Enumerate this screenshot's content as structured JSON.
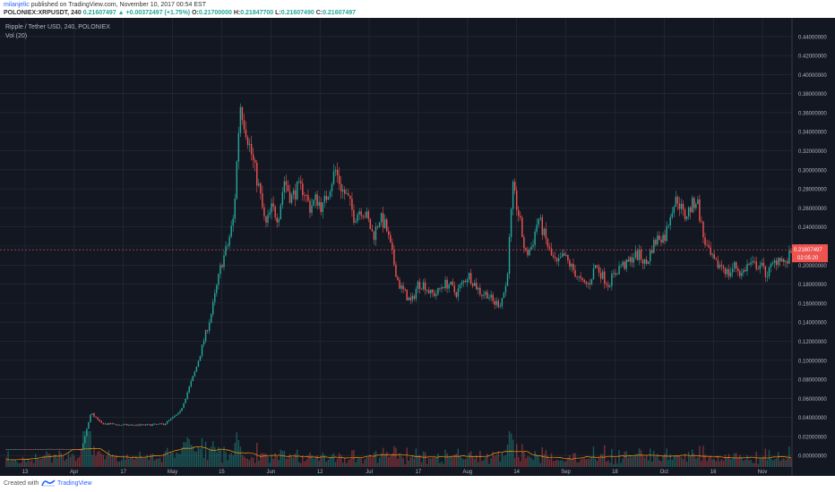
{
  "header": {
    "author": "milanjelic",
    "published": "published on TradingView.com, November 10, 2017 00:54 EST",
    "symbol": "POLONIEX:XRPUSDT, 240",
    "last": "0.21607497",
    "change": "▲ +0.00372497 (+1.75%)",
    "o_label": "O:",
    "o": "0.21700000",
    "h_label": "H:",
    "h": "0.21847700",
    "l_label": "L:",
    "l": "0.21607490",
    "c_label": "C:",
    "c": "0.21607497"
  },
  "legend": {
    "title": "Ripple / Tether USD, 240, POLONIEX",
    "volume": "Vol (20)"
  },
  "price_tag": {
    "value": "0.21607497",
    "countdown": "02:05:20"
  },
  "footer": {
    "created": "Created with",
    "brand": "TradingView"
  },
  "colors": {
    "background": "#131722",
    "up": "#26a69a",
    "down": "#ef5350",
    "grid": "#2a2e39",
    "vol_ma": "#ff9800"
  },
  "chart_data": {
    "type": "line",
    "title": "Ripple / Tether USD, 240, POLONIEX",
    "x_ticks": [
      "13",
      "Apr",
      "17",
      "May",
      "15",
      "Jun",
      "12",
      "Jul",
      "17",
      "Aug",
      "14",
      "Sep",
      "18",
      "Oct",
      "16",
      "Nov"
    ],
    "y_ticks": [
      "0.44000000",
      "0.42000000",
      "0.40000000",
      "0.38000000",
      "0.36000000",
      "0.34000000",
      "0.32000000",
      "0.30000000",
      "0.28000000",
      "0.26000000",
      "0.24000000",
      "0.22000000",
      "0.20000000",
      "0.18000000",
      "0.16000000",
      "0.14000000",
      "0.12000000",
      "0.10000000",
      "0.08000000",
      "0.06000000",
      "0.04000000",
      "0.02000000",
      "0.00000000"
    ],
    "ylim": [
      -0.012,
      0.452
    ],
    "x_range": [
      0,
      248
    ],
    "series": [
      {
        "x": [
          0,
          10,
          20,
          24,
          27,
          30,
          32,
          34,
          36,
          38,
          40,
          45,
          50,
          55,
          60,
          65,
          68,
          70,
          72,
          74,
          76,
          78,
          80,
          82,
          84,
          86,
          88,
          90,
          92,
          94,
          96,
          98,
          100,
          102,
          104,
          106,
          108,
          110,
          112,
          114,
          116,
          118,
          120,
          122,
          124,
          126,
          128,
          130,
          132,
          134,
          136,
          138,
          140,
          142,
          144,
          146,
          148,
          150,
          152,
          154,
          156,
          158,
          160,
          162,
          164,
          166,
          168,
          170,
          172,
          174,
          176,
          178,
          180,
          182,
          184,
          186,
          188,
          190,
          192,
          194,
          196,
          198,
          200,
          202,
          204,
          206,
          208,
          210,
          212,
          214,
          216,
          218,
          220,
          222,
          224,
          226,
          228,
          230,
          232,
          234,
          236,
          238,
          240,
          242,
          244,
          246,
          248
        ],
        "values": [
          0.0065,
          0.0066,
          0.0068,
          0.006,
          0.045,
          0.034,
          0.033,
          0.033,
          0.032,
          0.032,
          0.032,
          0.032,
          0.033,
          0.045,
          0.09,
          0.15,
          0.2,
          0.22,
          0.25,
          0.37,
          0.34,
          0.31,
          0.28,
          0.24,
          0.26,
          0.25,
          0.29,
          0.27,
          0.28,
          0.28,
          0.26,
          0.27,
          0.26,
          0.28,
          0.3,
          0.28,
          0.27,
          0.25,
          0.26,
          0.25,
          0.23,
          0.25,
          0.24,
          0.21,
          0.18,
          0.17,
          0.16,
          0.18,
          0.18,
          0.17,
          0.17,
          0.18,
          0.18,
          0.17,
          0.18,
          0.19,
          0.18,
          0.17,
          0.17,
          0.16,
          0.16,
          0.18,
          0.28,
          0.25,
          0.21,
          0.22,
          0.25,
          0.23,
          0.21,
          0.2,
          0.21,
          0.2,
          0.19,
          0.18,
          0.18,
          0.2,
          0.19,
          0.18,
          0.19,
          0.2,
          0.2,
          0.21,
          0.21,
          0.2,
          0.22,
          0.23,
          0.23,
          0.26,
          0.27,
          0.25,
          0.26,
          0.27,
          0.23,
          0.21,
          0.2,
          0.2,
          0.19,
          0.2,
          0.19,
          0.2,
          0.2,
          0.2,
          0.19,
          0.2,
          0.21,
          0.2,
          0.216
        ]
      }
    ]
  }
}
